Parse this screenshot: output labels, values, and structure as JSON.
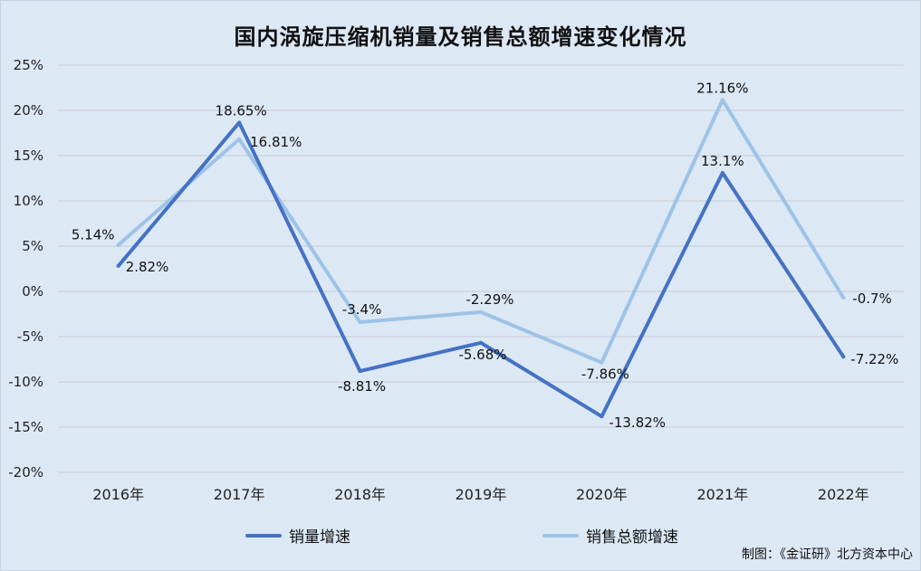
{
  "chart_data": {
    "type": "line",
    "title": "国内涡旋压缩机销量及销售总额增速变化情况",
    "categories": [
      "2016年",
      "2017年",
      "2018年",
      "2019年",
      "2020年",
      "2021年",
      "2022年"
    ],
    "y_ticks": [
      "25%",
      "20%",
      "15%",
      "10%",
      "5%",
      "0%",
      "-5%",
      "-10%",
      "-15%",
      "-20%"
    ],
    "ylim": [
      -20,
      25
    ],
    "grid": true,
    "legend_position": "bottom",
    "series": [
      {
        "name": "销量增速",
        "color": "#4472c4",
        "values": [
          2.82,
          18.65,
          -8.81,
          -5.68,
          -13.82,
          13.1,
          -7.22
        ],
        "labels": [
          "2.82%",
          "18.65%",
          "-8.81%",
          "-5.68%",
          "-13.82%",
          "13.1%",
          "-7.22%"
        ]
      },
      {
        "name": "销售总额增速",
        "color": "#9dc3e6",
        "values": [
          5.14,
          16.81,
          -3.4,
          -2.29,
          -7.86,
          21.16,
          -0.7
        ],
        "labels": [
          "5.14%",
          "16.81%",
          "-3.4%",
          "-2.29%",
          "-7.86%",
          "21.16%",
          "-0.7%"
        ]
      }
    ]
  },
  "source": "制图：《金证研》北方资本中心"
}
